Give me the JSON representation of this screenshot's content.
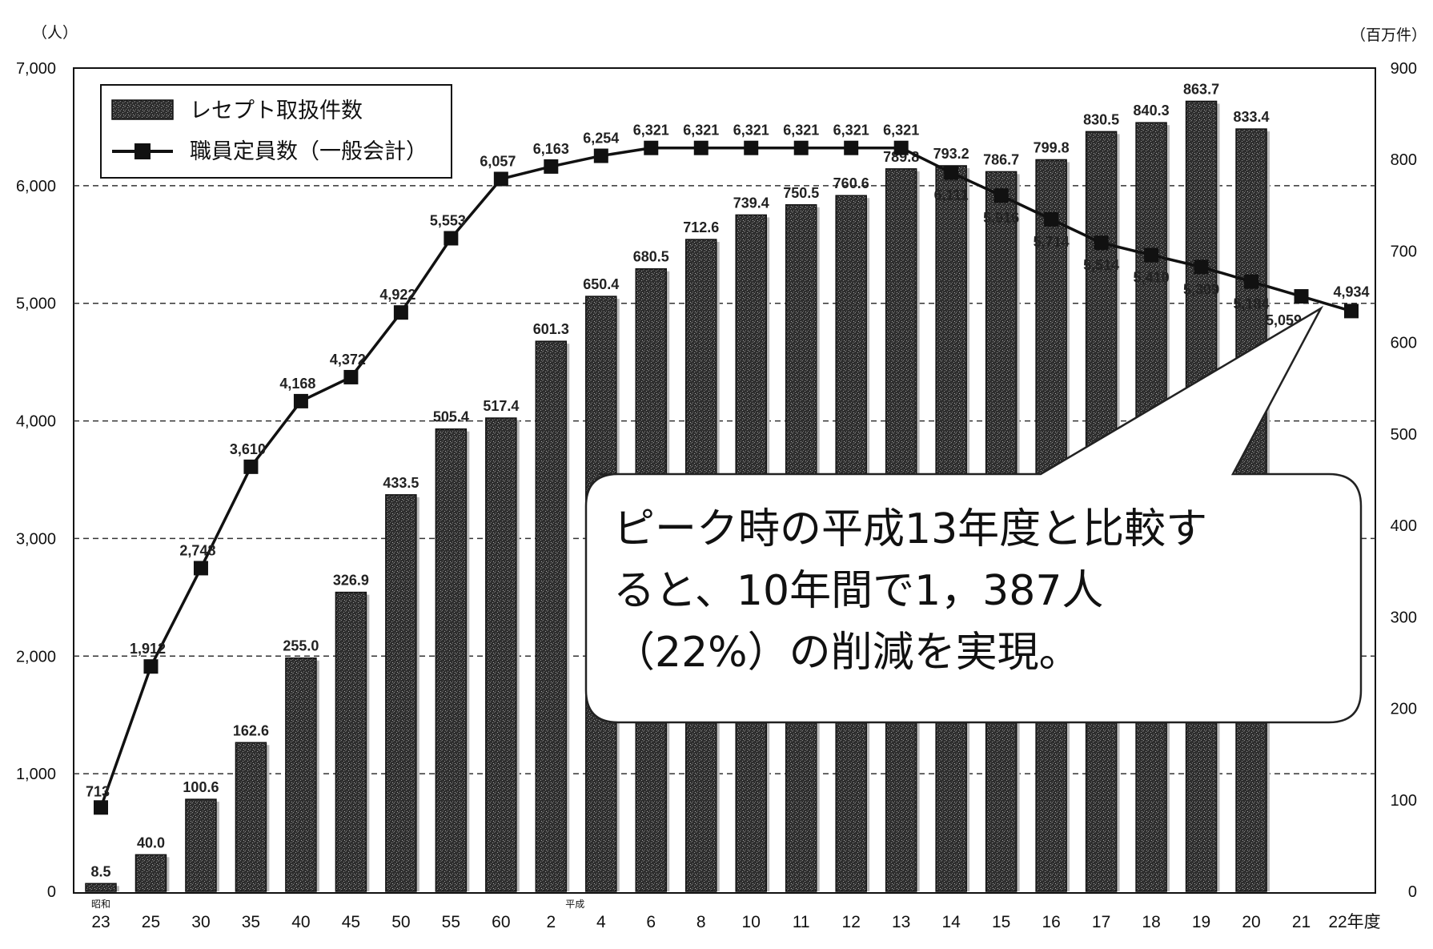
{
  "chart_data": {
    "type": "bar+line",
    "left_axis": {
      "unit": "（人）",
      "ticks": [
        "7,000",
        "6,000",
        "5,000",
        "4,000",
        "3,000",
        "2,000",
        "1,000",
        "0"
      ],
      "ylim": [
        0,
        7000
      ]
    },
    "right_axis": {
      "unit": "（百万件）",
      "ticks": [
        "900",
        "800",
        "700",
        "600",
        "500",
        "400",
        "300",
        "200",
        "100",
        "0"
      ],
      "ylim": [
        0,
        900
      ]
    },
    "x_label_suffix": "年度",
    "era_labels": {
      "showa": "昭和",
      "heisei": "平成"
    },
    "categories": [
      "23",
      "25",
      "30",
      "35",
      "40",
      "45",
      "50",
      "55",
      "60",
      "2",
      "4",
      "6",
      "8",
      "10",
      "11",
      "12",
      "13",
      "14",
      "15",
      "16",
      "17",
      "18",
      "19",
      "20",
      "21",
      "22"
    ],
    "last_category_label": "22年度",
    "bar_series": {
      "name": "レセプト取扱件数",
      "axis": "right",
      "values": [
        8.5,
        40.0,
        100.6,
        162.6,
        255.0,
        326.9,
        433.5,
        505.4,
        517.4,
        601.3,
        650.4,
        680.5,
        712.6,
        739.4,
        750.5,
        760.6,
        789.8,
        793.2,
        786.7,
        799.8,
        830.5,
        840.3,
        863.7,
        833.4,
        null,
        null
      ],
      "labels": [
        "8.5",
        "40.0",
        "100.6",
        "162.6",
        "255.0",
        "326.9",
        "433.5",
        "505.4",
        "517.4",
        "601.3",
        "650.4",
        "680.5",
        "712.6",
        "739.4",
        "750.5",
        "760.6",
        "789.8",
        "793.2",
        "786.7",
        "799.8",
        "830.5",
        "840.3",
        "863.7",
        "833.4",
        "",
        ""
      ]
    },
    "line_series": {
      "name": "職員定員数（一般会計）",
      "axis": "left",
      "values": [
        713,
        1912,
        2748,
        3610,
        4168,
        4372,
        4922,
        5553,
        6057,
        6163,
        6254,
        6321,
        6321,
        6321,
        6321,
        6321,
        6321,
        6111,
        5916,
        5714,
        5514,
        5410,
        5309,
        5184,
        5059,
        4934
      ],
      "labels": [
        "713",
        "1,912",
        "2,748",
        "3,610",
        "4,168",
        "4,372",
        "4,922",
        "5,553",
        "6,057",
        "6,163",
        "6,254",
        "6,321",
        "6,321",
        "6,321",
        "6,321",
        "6,321",
        "6,321",
        "6,111",
        "5,916",
        "5,714",
        "5,514",
        "5,410",
        "5,309",
        "5,184",
        "5,059",
        "4,934"
      ]
    },
    "legend": {
      "placement": "top-left"
    },
    "grid": "dashed horizontal",
    "callout": {
      "lines": [
        "ピーク時の平成13年度と比較す",
        "ると、10年間で1，387人",
        "（22%）の削減を実現。"
      ]
    }
  }
}
